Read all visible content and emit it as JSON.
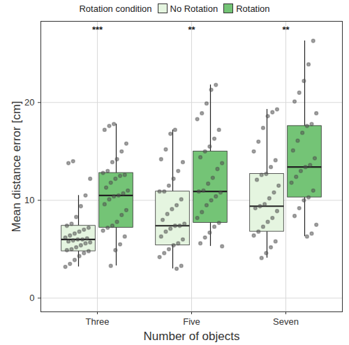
{
  "chart_data": {
    "type": "box",
    "x_label": "Number of objects",
    "y_label": "Mean distance error [cm]",
    "legend_title": "Rotation condition",
    "legend": "top",
    "grid": true,
    "categories": [
      "Three",
      "Five",
      "Seven"
    ],
    "ylim": [
      -1.4,
      28.3
    ],
    "yticks": [
      0,
      10,
      20
    ],
    "series": [
      {
        "name": "No Rotation",
        "color": "#e5f5e0",
        "boxes": [
          {
            "whisker_low": 3.2,
            "q1": 4.8,
            "median": 6.0,
            "q3": 7.4,
            "whisker_high": 10.5
          },
          {
            "whisker_low": 3.0,
            "q1": 5.4,
            "median": 7.4,
            "q3": 10.9,
            "whisker_high": 17.2
          },
          {
            "whisker_low": 4.1,
            "q1": 6.8,
            "median": 9.4,
            "q3": 12.7,
            "whisker_high": 19.3
          }
        ],
        "points": [
          [
            3.2,
            3.5,
            3.9,
            4.3,
            4.6,
            4.8,
            4.9,
            5.0,
            5.2,
            5.4,
            5.6,
            5.7,
            5.8,
            5.9,
            6.0,
            6.0,
            6.1,
            6.2,
            6.4,
            6.6,
            6.8,
            7.0,
            7.2,
            7.4,
            7.6,
            8.3,
            9.4,
            10.5,
            12.2,
            13.8,
            14.0
          ],
          [
            3.0,
            3.3,
            4.2,
            4.6,
            5.0,
            5.4,
            5.6,
            6.0,
            6.3,
            6.8,
            7.1,
            7.4,
            7.4,
            7.6,
            8.0,
            8.6,
            9.1,
            9.5,
            10.1,
            10.9,
            10.9,
            11.5,
            12.2,
            13.0,
            13.9,
            14.2,
            15.2,
            16.8,
            17.2
          ],
          [
            4.1,
            4.6,
            5.2,
            5.8,
            6.4,
            6.8,
            7.3,
            7.8,
            8.2,
            8.9,
            9.2,
            9.4,
            9.6,
            10.2,
            10.8,
            11.5,
            12.1,
            12.6,
            12.7,
            13.4,
            14.1,
            15.0,
            16.0,
            17.4,
            18.6,
            19.0,
            19.3
          ]
        ]
      },
      {
        "name": "Rotation",
        "color": "#74c476",
        "boxes": [
          {
            "whisker_low": 3.3,
            "q1": 7.2,
            "median": 10.5,
            "q3": 12.8,
            "whisker_high": 17.8
          },
          {
            "whisker_low": 5.3,
            "q1": 7.7,
            "median": 10.9,
            "q3": 15.0,
            "whisker_high": 21.8
          },
          {
            "whisker_low": 6.3,
            "q1": 10.3,
            "median": 13.4,
            "q3": 17.6,
            "whisker_high": 26.3
          }
        ],
        "points": [
          [
            3.3,
            4.9,
            5.5,
            6.3,
            6.9,
            7.2,
            7.4,
            7.8,
            8.5,
            9.0,
            9.6,
            10.1,
            10.4,
            10.5,
            10.7,
            11.0,
            11.3,
            11.8,
            12.2,
            12.5,
            12.6,
            12.8,
            13.0,
            13.9,
            14.2,
            15.0,
            15.8,
            17.2,
            17.6,
            17.8
          ],
          [
            5.3,
            5.6,
            6.2,
            6.7,
            7.3,
            7.7,
            8.2,
            8.8,
            9.5,
            10.0,
            10.4,
            10.8,
            10.9,
            11.0,
            11.7,
            12.3,
            13.2,
            13.8,
            14.4,
            15.0,
            15.5,
            16.3,
            17.2,
            18.3,
            18.9,
            19.9,
            21.3,
            21.8
          ],
          [
            6.3,
            6.6,
            7.5,
            8.4,
            9.2,
            10.0,
            10.3,
            11.0,
            11.8,
            12.4,
            13.0,
            13.4,
            13.6,
            14.3,
            15.1,
            16.1,
            16.9,
            17.6,
            17.8,
            18.9,
            20.1,
            21.0,
            22.2,
            23.9,
            26.3
          ]
        ]
      }
    ],
    "annotations": [
      {
        "category": "Three",
        "text": "***",
        "y": 27.4
      },
      {
        "category": "Five",
        "text": "**",
        "y": 27.4
      },
      {
        "category": "Seven",
        "text": "**",
        "y": 27.4
      }
    ]
  }
}
